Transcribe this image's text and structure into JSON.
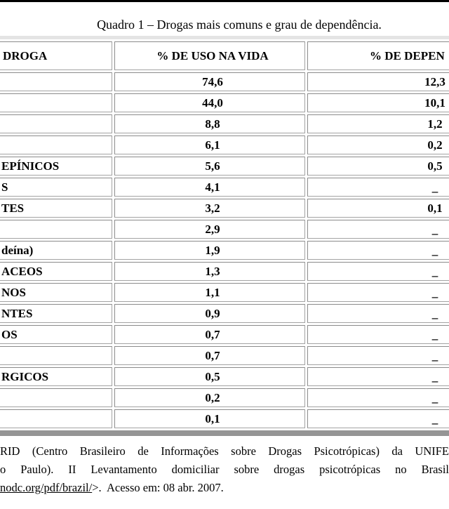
{
  "caption": "Quadro 1 – Drogas mais comuns e grau de dependência.",
  "table": {
    "columns": [
      {
        "label": "DROGA"
      },
      {
        "label": "% DE USO NA VIDA"
      },
      {
        "label": "% DE DEPEN"
      }
    ],
    "rows": [
      [
        "",
        "74,6",
        "12,3"
      ],
      [
        "",
        "44,0",
        "10,1"
      ],
      [
        "",
        "8,8",
        "1,2"
      ],
      [
        "",
        "6,1",
        "0,2"
      ],
      [
        "EPÍNICOS",
        "5,6",
        "0,5"
      ],
      [
        "S",
        "4,1",
        "_"
      ],
      [
        "TES",
        "3,2",
        "0,1"
      ],
      [
        "",
        "2,9",
        "_"
      ],
      [
        "deína)",
        "1,9",
        "_"
      ],
      [
        "ACEOS",
        "1,3",
        "_"
      ],
      [
        "NOS",
        "1,1",
        "_"
      ],
      [
        "NTES",
        "0,9",
        "_"
      ],
      [
        "OS",
        "0,7",
        "_"
      ],
      [
        "",
        "0,7",
        "_"
      ],
      [
        "RGICOS",
        "0,5",
        "_"
      ],
      [
        "",
        "0,2",
        "_"
      ],
      [
        "",
        "0,1",
        "_"
      ]
    ]
  },
  "footer": {
    "line1": "RID (Centro Brasileiro de Informações sobre Drogas Psicotrópicas) da UNIFE",
    "line2": "o Paulo). II Levantamento domiciliar sobre drogas psicotrópicas no Brasil",
    "line3_link": "nodc.org/pdf/brazil/",
    "line3_rest": ">.  Acesso em: 08 abr. 2007."
  }
}
